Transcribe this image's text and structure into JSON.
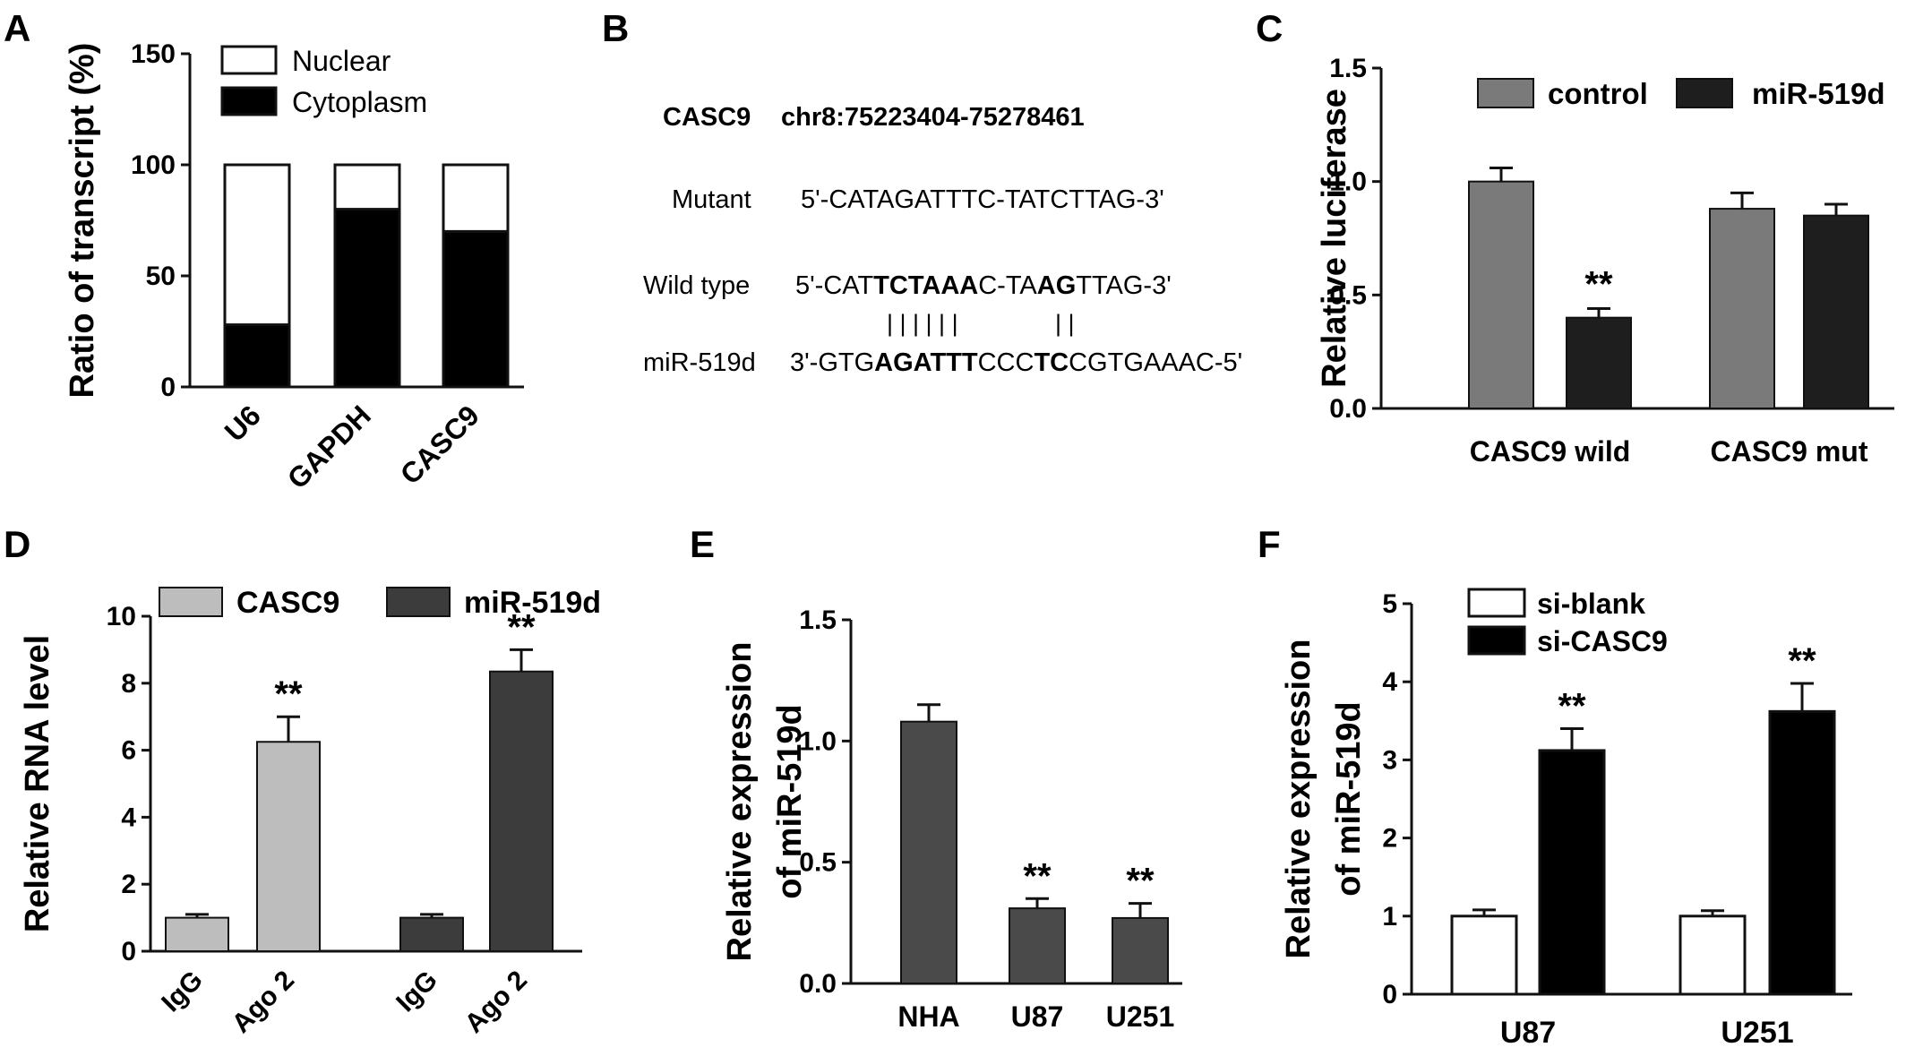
{
  "panel_letters": [
    "A",
    "B",
    "C",
    "D",
    "E",
    "F"
  ],
  "panel_b": {
    "gene": "CASC9",
    "coords": "chr8:75223404-75278461",
    "mutant_label": "Mutant",
    "mutant_seq": "5'-CATAGATTTC-TATCTTAG-3'",
    "wild_label": "Wild type",
    "wild_seq_parts": [
      {
        "t": "5'-CAT",
        "b": false
      },
      {
        "t": "TCTAAA",
        "b": true
      },
      {
        "t": "C-TA",
        "b": false
      },
      {
        "t": "AG",
        "b": true
      },
      {
        "t": "TTAG-3'",
        "b": false
      }
    ],
    "pairing_left": "| | | | | |",
    "pairing_right": "| |",
    "mir_label": "miR-519d",
    "mir_seq_parts": [
      {
        "t": "3'-GTG",
        "b": false
      },
      {
        "t": "AGATTT",
        "b": true
      },
      {
        "t": "CCC",
        "b": false
      },
      {
        "t": "TC",
        "b": true
      },
      {
        "t": "CGTGAAAC-5'",
        "b": false
      }
    ]
  },
  "chart_data": [
    {
      "panel": "A",
      "type": "bar",
      "stacked": true,
      "ylabel": "Ratio of transcript (%)",
      "ylim": [
        0,
        150
      ],
      "yticks": [
        0,
        50,
        100,
        150
      ],
      "categories": [
        "U6",
        "GAPDH",
        "CASC9"
      ],
      "series": [
        {
          "name": "Cytoplasm",
          "values": [
            28,
            80,
            70
          ],
          "color": "#000000"
        },
        {
          "name": "Nuclear",
          "values": [
            72,
            20,
            30
          ],
          "color": "#ffffff"
        }
      ],
      "legend": "top-right"
    },
    {
      "panel": "C",
      "type": "bar",
      "ylabel": "Relative luciferase",
      "ylim": [
        0,
        1.5
      ],
      "yticks": [
        "0.0",
        "0.5",
        "1.0",
        "1.5"
      ],
      "categories": [
        "CASC9 wild",
        "CASC9 mut"
      ],
      "series": [
        {
          "name": "control",
          "values": [
            1.0,
            0.88
          ],
          "errors": [
            0.06,
            0.07
          ],
          "color": "#7a7a7a"
        },
        {
          "name": "miR-519d",
          "values": [
            0.4,
            0.85
          ],
          "errors": [
            0.04,
            0.05
          ],
          "color": "#1e1e1e"
        }
      ],
      "annotations": [
        {
          "category": 0,
          "series": 1,
          "text": "**"
        }
      ],
      "legend": "top"
    },
    {
      "panel": "D",
      "type": "bar",
      "ylabel": "Relative RNA level",
      "ylim": [
        0,
        10
      ],
      "yticks": [
        0,
        2,
        4,
        6,
        8,
        10
      ],
      "groups": [
        {
          "name": "CASC9",
          "color": "#bdbdbd",
          "categories": [
            "IgG",
            "Ago 2"
          ],
          "values": [
            1.0,
            6.25
          ],
          "errors": [
            0.1,
            0.75
          ],
          "annotations": [
            "",
            "**"
          ]
        },
        {
          "name": "miR-519d",
          "color": "#3c3c3c",
          "categories": [
            "IgG",
            "Ago 2"
          ],
          "values": [
            1.0,
            8.35
          ],
          "errors": [
            0.1,
            0.65
          ],
          "annotations": [
            "",
            "**"
          ]
        }
      ],
      "legend": "top"
    },
    {
      "panel": "E",
      "type": "bar",
      "ylabel": "Relative expression of miR-519d",
      "ylabel_lines": [
        "Relative expression",
        "of miR-519d"
      ],
      "ylim": [
        0,
        1.5
      ],
      "yticks": [
        "0.0",
        "0.5",
        "1.0",
        "1.5"
      ],
      "categories": [
        "NHA",
        "U87",
        "U251"
      ],
      "values": [
        1.08,
        0.31,
        0.27
      ],
      "errors": [
        0.07,
        0.04,
        0.06
      ],
      "color": "#4a4a4a",
      "annotations": [
        "",
        "**",
        "**"
      ]
    },
    {
      "panel": "F",
      "type": "bar",
      "ylabel": "Relative expression of miR-519d",
      "ylabel_lines": [
        "Relative expression",
        "of miR-519d"
      ],
      "ylim": [
        0,
        5
      ],
      "yticks": [
        0,
        1,
        2,
        3,
        4,
        5
      ],
      "categories": [
        "U87",
        "U251"
      ],
      "series": [
        {
          "name": "si-blank",
          "values": [
            1.0,
            1.0
          ],
          "errors": [
            0.08,
            0.07
          ],
          "color": "#ffffff"
        },
        {
          "name": "si-CASC9",
          "values": [
            3.12,
            3.62
          ],
          "errors": [
            0.28,
            0.36
          ],
          "color": "#000000"
        }
      ],
      "annotations": [
        {
          "category": 0,
          "series": 1,
          "text": "**"
        },
        {
          "category": 1,
          "series": 1,
          "text": "**"
        }
      ],
      "legend": "top-left"
    }
  ]
}
